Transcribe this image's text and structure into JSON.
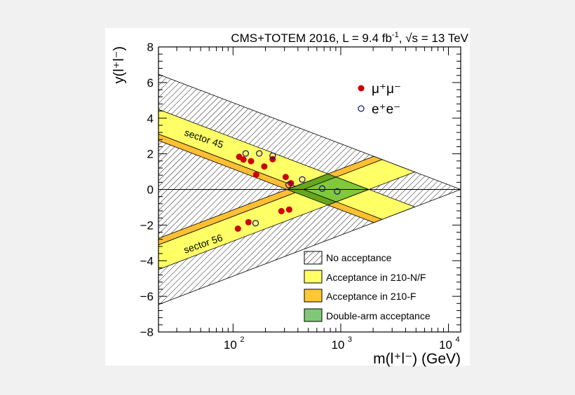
{
  "chart_data": {
    "type": "scatter",
    "title": "CMS+TOTEM 2016, L = 9.4 fb⁻¹, √s = 13 TeV",
    "title_parts": {
      "pre": "CMS+TOTEM 2016, L = 9.4 fb",
      "sup": "-1",
      "mid": ", ",
      "sqrt": "√s",
      "post": " = 13 TeV"
    },
    "xlabel": "m(l⁺l⁻) (GeV)",
    "ylabel": "y(l⁺l⁻)",
    "xscale": "log",
    "xlim": [
      20.3,
      13000
    ],
    "ylim": [
      -8,
      8
    ],
    "xticks": [
      {
        "value": 100,
        "label": "10",
        "exp": "2"
      },
      {
        "value": 1000,
        "label": "10",
        "exp": "3"
      },
      {
        "value": 10000,
        "label": "10",
        "exp": "4"
      }
    ],
    "yticks": [
      8,
      6,
      4,
      2,
      0,
      -2,
      -4,
      -6,
      -8
    ],
    "zero_line": true,
    "series": [
      {
        "name": "μ⁺μ⁻",
        "marker": "filled-circle",
        "color": "#cc0000",
        "points": [
          [
            114,
            1.83
          ],
          [
            125,
            1.68
          ],
          [
            147,
            1.59
          ],
          [
            195,
            1.29
          ],
          [
            164,
            0.83
          ],
          [
            233,
            1.7
          ],
          [
            308,
            0.7
          ],
          [
            344,
            0.35
          ],
          [
            281,
            -1.22
          ],
          [
            332,
            -1.13
          ],
          [
            139,
            -1.84
          ],
          [
            111,
            -2.2
          ]
        ]
      },
      {
        "name": "e⁺e⁻",
        "marker": "open-circle",
        "color": "#1a1a80",
        "points": [
          [
            131,
            2.02
          ],
          [
            175,
            2.02
          ],
          [
            233,
            1.89
          ],
          [
            328,
            0.26
          ],
          [
            439,
            0.56
          ],
          [
            673,
            0.05
          ],
          [
            927,
            -0.11
          ],
          [
            162,
            -1.89
          ]
        ]
      }
    ],
    "regions": [
      {
        "name": "No acceptance",
        "fill": "hatch",
        "polygon": [
          [
            20,
            6.48
          ],
          [
            13000,
            0
          ],
          [
            20,
            -6.48
          ]
        ]
      },
      {
        "name": "Acceptance in 210-N/F",
        "band": "sector 45",
        "fill": "#ffff66",
        "polygon": [
          [
            20,
            4.51
          ],
          [
            4864,
            -0.98
          ],
          [
            2422,
            -1.68
          ],
          [
            20,
            3.12
          ]
        ]
      },
      {
        "name": "Acceptance in 210-F",
        "band": "sector 45",
        "fill": "#ffbf33",
        "polygon": [
          [
            20,
            3.12
          ],
          [
            2422,
            -1.68
          ],
          [
            2031,
            -1.86
          ],
          [
            20,
            2.76
          ]
        ]
      },
      {
        "name": "Acceptance in 210-N/F",
        "band": "sector 56",
        "fill": "#ffff66",
        "polygon": [
          [
            20,
            -4.51
          ],
          [
            4864,
            0.98
          ],
          [
            2422,
            1.68
          ],
          [
            20,
            -3.12
          ]
        ]
      },
      {
        "name": "Acceptance in 210-F",
        "band": "sector 56",
        "fill": "#ffbf33",
        "polygon": [
          [
            20,
            -3.12
          ],
          [
            2422,
            1.68
          ],
          [
            2031,
            1.86
          ],
          [
            20,
            -2.76
          ]
        ]
      },
      {
        "name": "Double-arm acceptance (210-F)",
        "fill": "#66a61e",
        "polygon": [
          [
            317,
            0
          ],
          [
            760,
            0.874
          ],
          [
            1820,
            0
          ],
          [
            760,
            -0.874
          ]
        ]
      },
      {
        "name": "Double-arm acceptance",
        "fill": "#80c83c",
        "polygon": [
          [
            451,
            0
          ],
          [
            906,
            0.698
          ],
          [
            1820,
            0
          ],
          [
            906,
            -0.698
          ]
        ]
      }
    ],
    "band_labels": [
      "sector 45",
      "sector 56"
    ],
    "legend": {
      "placement": "bottom-right",
      "entries": [
        {
          "label": "No acceptance",
          "fill": "hatch"
        },
        {
          "label": "Acceptance in 210-N/F",
          "fill": "#ffff66"
        },
        {
          "label": "Acceptance in 210-F",
          "fill": "#ffc832"
        },
        {
          "label": "Double-arm acceptance",
          "fill": "#80c878"
        }
      ]
    },
    "marker_legend": {
      "placement": "top-right"
    }
  }
}
